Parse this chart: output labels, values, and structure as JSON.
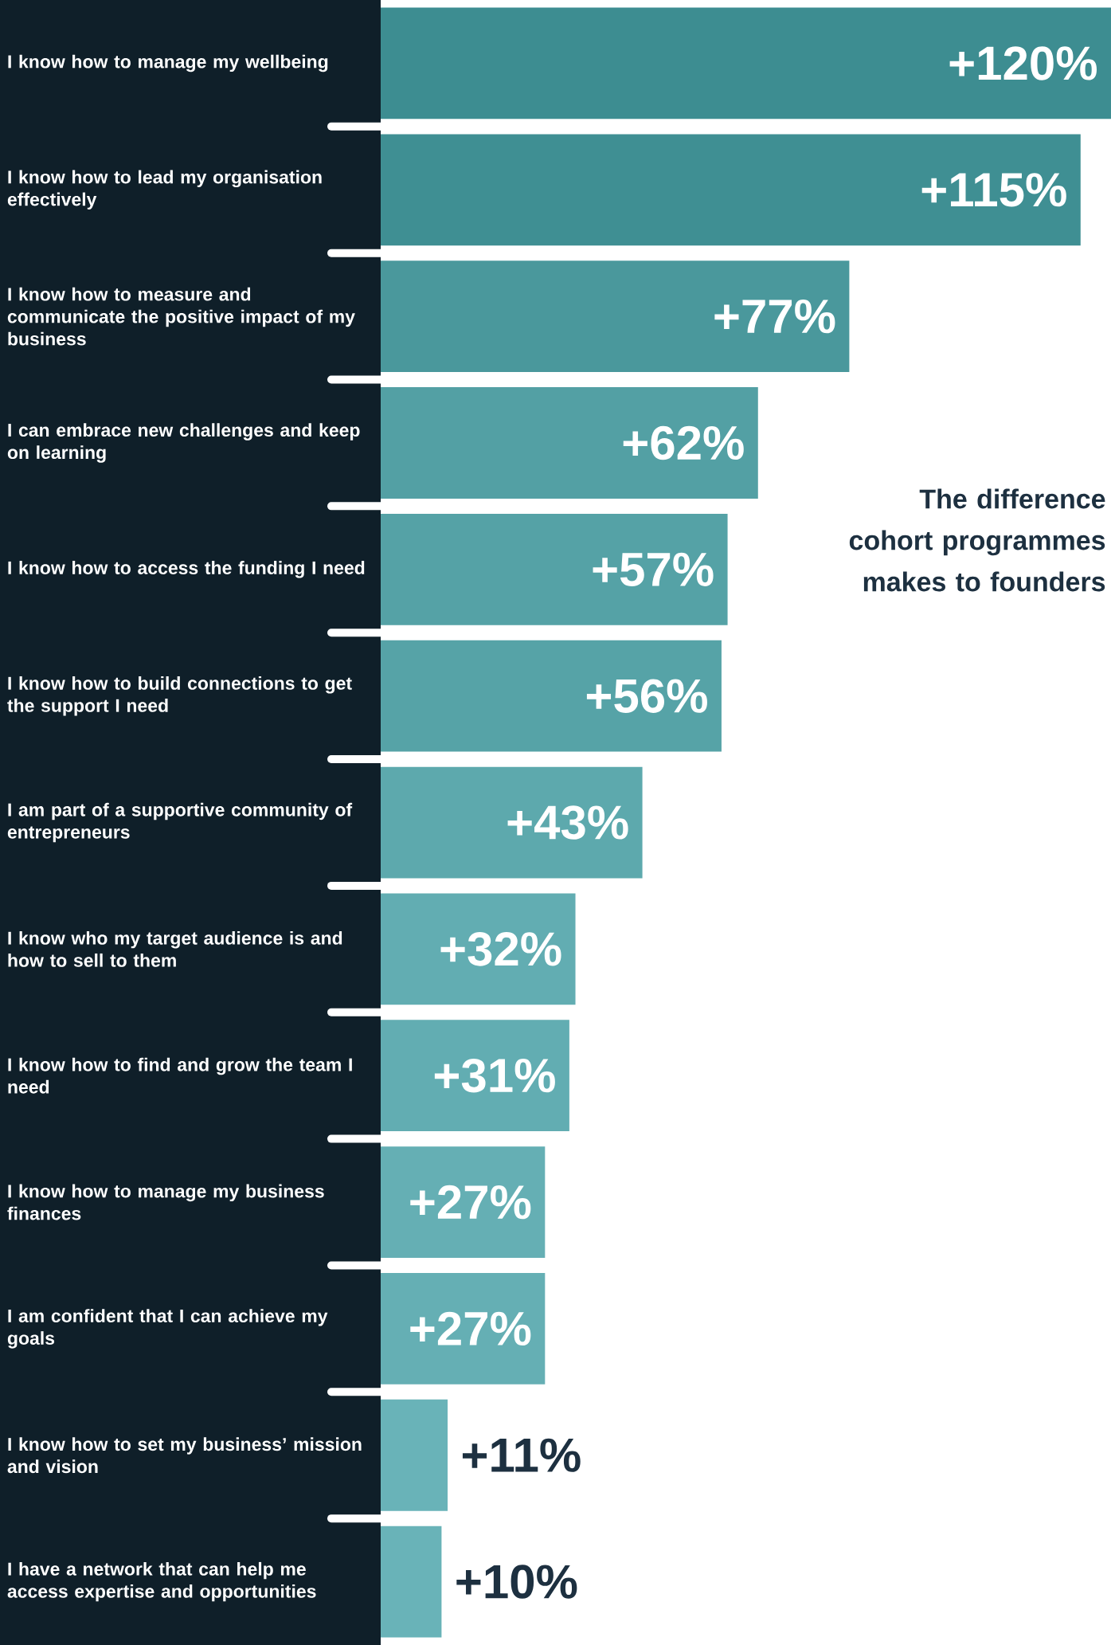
{
  "chart_data": {
    "type": "bar",
    "orientation": "horizontal",
    "title": "The difference cohort programmes makes to founders",
    "categories": [
      "I know how to manage my wellbeing",
      "I know how to lead my organisation effectively",
      "I know how to measure and communicate the positive impact of my business",
      "I can embrace new challenges and keep on learning",
      "I know how to access the funding I need",
      "I know how to build connections to get the support I need",
      "I am part of a supportive community of entrepreneurs",
      "I know who my target audience is and how to sell to them",
      "I know how to find and grow the team I need",
      "I know how to manage my business finances",
      "I am confident that I can achieve my goals",
      "I know how to set my business’ mission and vision",
      "I have a network that can help me access expertise and opportunities"
    ],
    "values": [
      120,
      115,
      77,
      62,
      57,
      56,
      43,
      32,
      31,
      27,
      27,
      11,
      10
    ],
    "value_labels": [
      "+120%",
      "+115%",
      "+77%",
      "+62%",
      "+57%",
      "+56%",
      "+43%",
      "+32%",
      "+31%",
      "+27%",
      "+27%",
      "+11%",
      "+10%"
    ],
    "colors": [
      "#3d8d91",
      "#3f8f93",
      "#4a989c",
      "#53a0a4",
      "#55a2a6",
      "#56a3a7",
      "#5da9ad",
      "#62adb2",
      "#62adb2",
      "#65afb4",
      "#65afb4",
      "#69b3b8",
      "#69b3b8"
    ]
  }
}
